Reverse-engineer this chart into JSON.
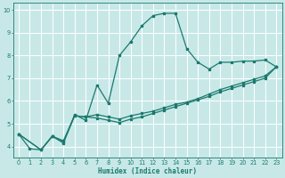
{
  "xlabel": "Humidex (Indice chaleur)",
  "bg_color": "#c8e8e8",
  "grid_color": "#ffffff",
  "line_color": "#1a7a6e",
  "xlim": [
    -0.5,
    23.5
  ],
  "ylim": [
    3.5,
    10.3
  ],
  "xtick_labels": [
    "0",
    "1",
    "2",
    "3",
    "4",
    "5",
    "6",
    "7",
    "8",
    "9",
    "10",
    "11",
    "12",
    "13",
    "14",
    "15",
    "16",
    "17",
    "18",
    "19",
    "20",
    "21",
    "22",
    "23"
  ],
  "xtick_vals": [
    0,
    1,
    2,
    3,
    4,
    5,
    6,
    7,
    8,
    9,
    10,
    11,
    12,
    13,
    14,
    15,
    16,
    17,
    18,
    19,
    20,
    21,
    22,
    23
  ],
  "ytick_vals": [
    4,
    5,
    6,
    7,
    8,
    9,
    10
  ],
  "curve1_x": [
    0,
    1,
    2,
    3,
    4,
    5,
    6,
    7,
    8,
    9,
    10,
    11,
    12,
    13,
    14,
    15,
    16,
    17,
    18,
    19,
    20,
    21,
    22,
    23
  ],
  "curve1_y": [
    4.55,
    3.9,
    3.85,
    4.45,
    4.2,
    5.4,
    5.15,
    6.7,
    5.9,
    8.0,
    8.6,
    9.3,
    9.75,
    9.85,
    9.85,
    8.3,
    7.7,
    7.4,
    7.7,
    7.7,
    7.75,
    7.75,
    7.8,
    7.5
  ],
  "curve2_x": [
    0,
    2,
    3,
    4,
    5,
    6,
    7,
    8,
    9,
    10,
    11,
    12,
    13,
    14,
    15,
    16,
    17,
    18,
    19,
    20,
    21,
    22,
    23
  ],
  "curve2_y": [
    4.55,
    3.85,
    4.45,
    4.25,
    5.35,
    5.3,
    5.25,
    5.15,
    5.05,
    5.2,
    5.3,
    5.45,
    5.6,
    5.75,
    5.9,
    6.05,
    6.2,
    6.4,
    6.55,
    6.7,
    6.85,
    7.0,
    7.5
  ],
  "curve3_x": [
    0,
    2,
    3,
    4,
    5,
    6,
    7,
    8,
    9,
    10,
    11,
    12,
    13,
    14,
    15,
    16,
    17,
    18,
    19,
    20,
    21,
    22,
    23
  ],
  "curve3_y": [
    4.55,
    3.85,
    4.45,
    4.15,
    5.35,
    5.3,
    5.4,
    5.3,
    5.2,
    5.35,
    5.45,
    5.55,
    5.7,
    5.85,
    5.95,
    6.1,
    6.3,
    6.5,
    6.65,
    6.8,
    6.95,
    7.1,
    7.5
  ]
}
